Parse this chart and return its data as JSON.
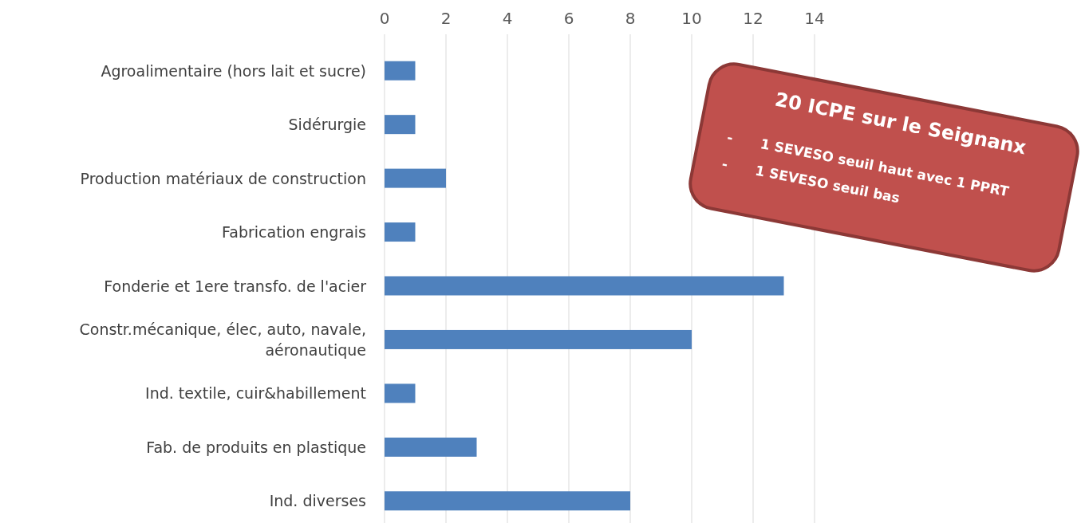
{
  "chart_data": {
    "type": "bar",
    "orientation": "horizontal",
    "categories": [
      "Agroalimentaire (hors lait et sucre)",
      "Sidérurgie",
      "Production matériaux de construction",
      "Fabrication engrais",
      "Fonderie et 1ere transfo. de l'acier",
      "Constr.mécanique, élec, auto, navale, aéronautique",
      "Ind. textile, cuir&habillement",
      "Fab. de produits en plastique",
      "Ind. diverses"
    ],
    "values": [
      1,
      1,
      2,
      1,
      13,
      10,
      1,
      3,
      8
    ],
    "color": "#4f81bd",
    "xlim": [
      0,
      14
    ],
    "xticks": [
      0,
      2,
      4,
      6,
      8,
      10,
      12,
      14
    ],
    "grid": "x",
    "annotations": [
      "20 ICPE sur le Seignanx",
      "-      1 SEVESO seuil haut avec 1 PPRT",
      "-      1 SEVESO seuil bas"
    ]
  }
}
